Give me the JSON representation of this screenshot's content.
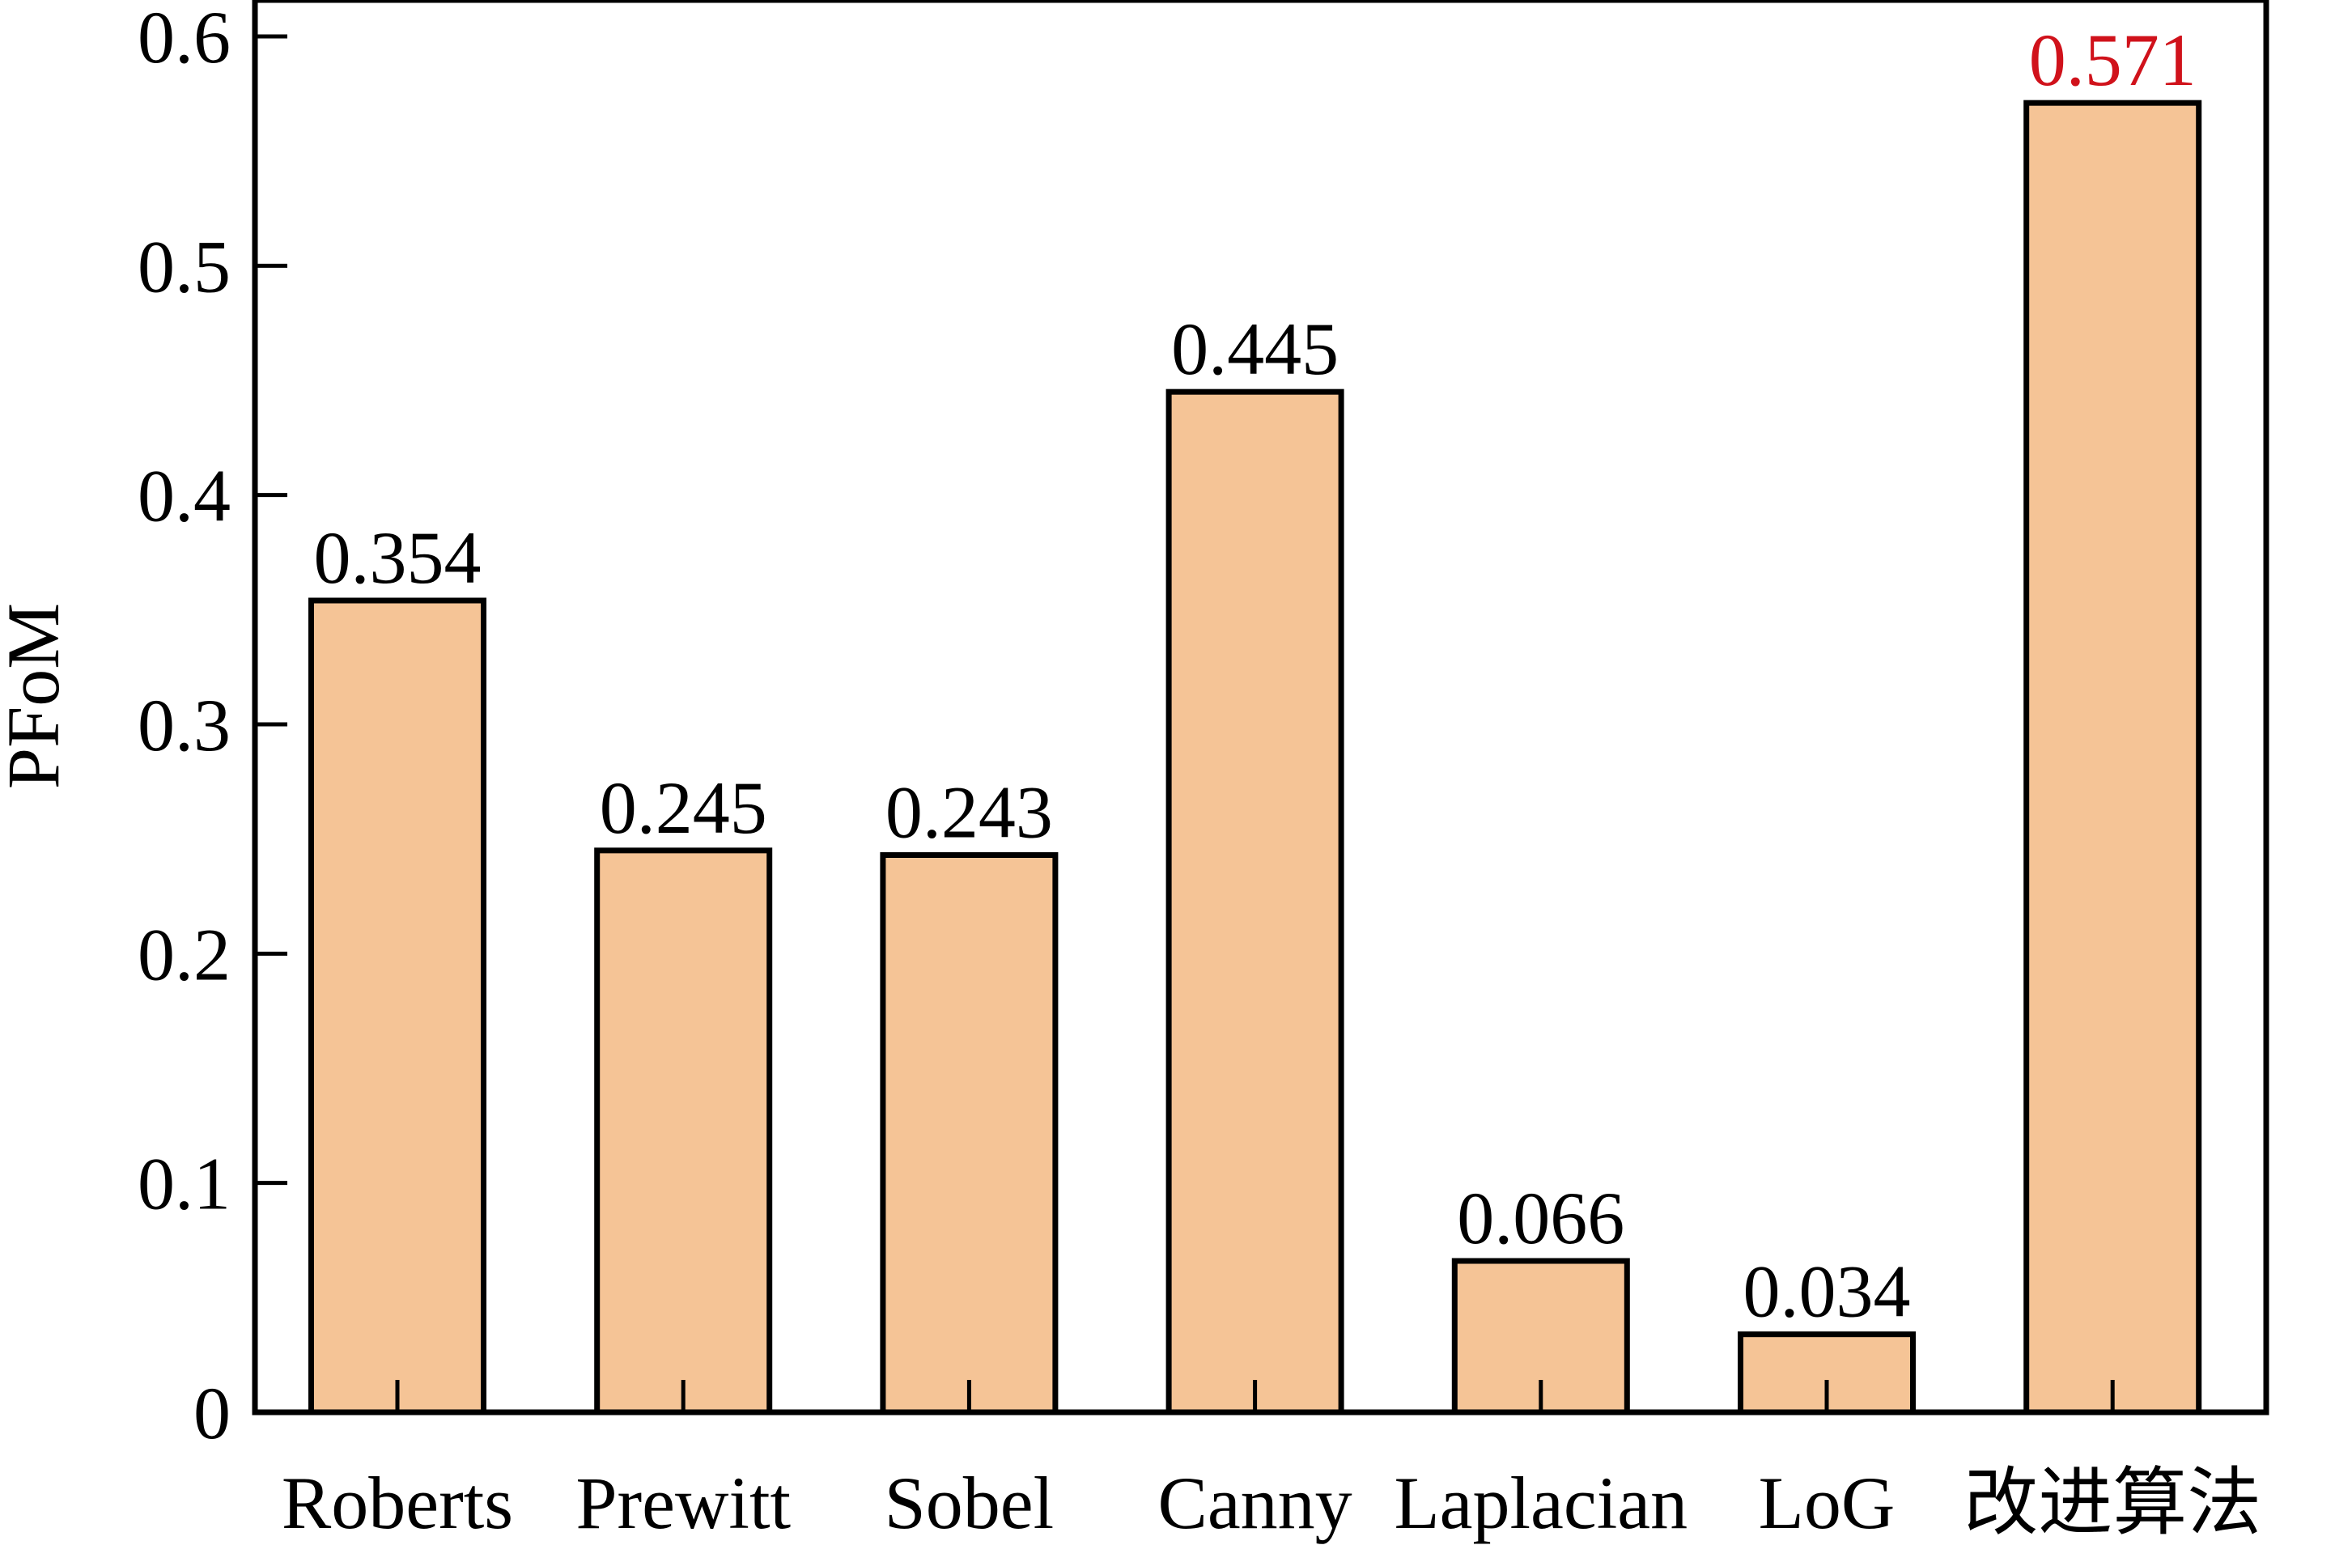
{
  "chart_data": {
    "type": "bar",
    "categories": [
      "Roberts",
      "Prewitt",
      "Sobel",
      "Canny",
      "Laplacian",
      "LoG",
      "改进算法"
    ],
    "values": [
      0.354,
      0.245,
      0.243,
      0.445,
      0.066,
      0.034,
      0.571
    ],
    "data_labels": [
      "0.354",
      "0.245",
      "0.243",
      "0.445",
      "0.066",
      "0.034",
      "0.571"
    ],
    "ylabel": "PFoM",
    "xlabel": "",
    "title": "",
    "ylim": [
      0,
      0.6
    ],
    "yticks": [
      0,
      0.1,
      0.2,
      0.3,
      0.4,
      0.5,
      0.6
    ],
    "ytick_labels": [
      "0",
      "0.1",
      "0.2",
      "0.3",
      "0.4",
      "0.5",
      "0.6"
    ],
    "grid": false,
    "bar_color": "#F5C496",
    "highlight_index": 6,
    "highlight_label_color": "#D0121B",
    "label_color": "#000000"
  }
}
